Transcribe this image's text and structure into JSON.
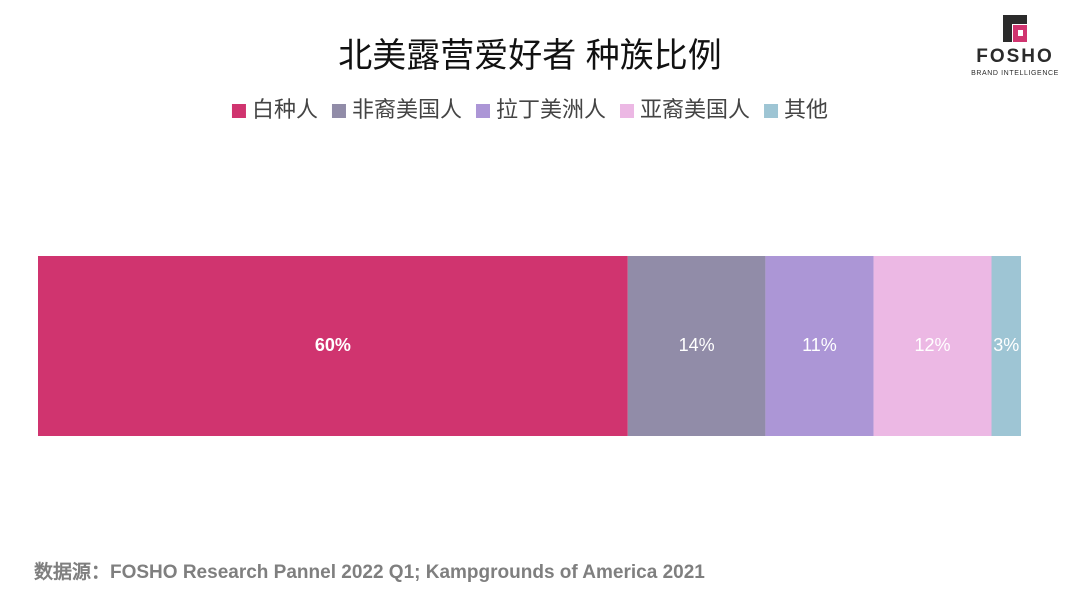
{
  "chart_data": {
    "type": "stacked-bar-horizontal",
    "title": "北美露营爱好者 种族比例",
    "xlim": [
      0,
      100
    ],
    "legend": "top",
    "series": [
      {
        "name": "白种人",
        "color": "#d0346f",
        "values": [
          60
        ],
        "value_labels": [
          "60%"
        ]
      },
      {
        "name": "非裔美国人",
        "color": "#918ca8",
        "values": [
          14
        ],
        "value_labels": [
          "14%"
        ]
      },
      {
        "name": "拉丁美洲人",
        "color": "#ac96d6",
        "values": [
          11
        ],
        "value_labels": [
          "11%"
        ]
      },
      {
        "name": "亚裔美国人",
        "color": "#ecb8e4",
        "values": [
          12
        ],
        "value_labels": [
          "12%"
        ]
      },
      {
        "name": "其他",
        "color": "#9ec5d4",
        "values": [
          3
        ],
        "value_labels": [
          "3%"
        ]
      }
    ]
  },
  "source": "数据源：FOSHO Research Pannel 2022 Q1; Kampgrounds of America 2021",
  "logo": {
    "name": "FOSHO",
    "tagline": "BRAND INTELLIGENCE"
  }
}
